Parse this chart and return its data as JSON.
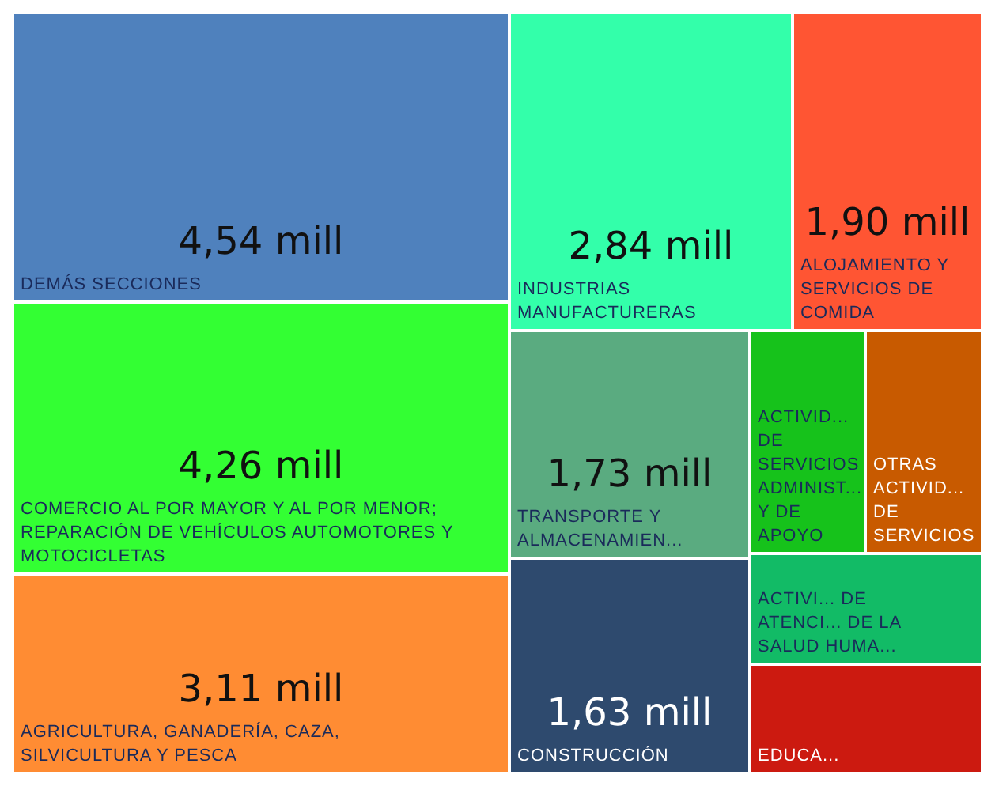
{
  "chart_data": {
    "type": "other",
    "categories": [
      "DEMÁS SECCIONES",
      "COMERCIO AL POR MAYOR Y AL POR MENOR; REPARACIÓN DE VEHÍCULOS AUTOMOTORES Y MOTOCICLETAS",
      "AGRICULTURA, GANADERÍA, CAZA, SILVICULTURA Y PESCA",
      "INDUSTRIAS MANUFACTURERAS",
      "ALOJAMIENTO Y SERVICIOS DE COMIDA",
      "TRANSPORTE Y ALMACENAMIEN...",
      "CONSTRUCCIÓN",
      "ACTIVID... DE SERVICIOS ADMINIST... Y DE APOYO",
      "OTRAS ACTIVID... DE SERVICIOS",
      "ACTIVI... DE ATENCI... DE LA SALUD HUMA...",
      "EDUCA..."
    ],
    "values": [
      4.54,
      4.26,
      3.11,
      2.84,
      1.9,
      1.73,
      1.63,
      null,
      null,
      null,
      null
    ],
    "value_labels": [
      "4,54 mill",
      "4,26 mill",
      "3,11 mill",
      "2,84 mill",
      "1,90 mill",
      "1,73 mill",
      "1,63 mill",
      null,
      null,
      null,
      null
    ],
    "colors": [
      "#4f81bd",
      "#33ff33",
      "#ff8c33",
      "#33ffaa",
      "#ff5533",
      "#5aab80",
      "#2e4a6e",
      "#16c21b",
      "#c85a00",
      "#12bb66",
      "#cc1a10"
    ]
  }
}
